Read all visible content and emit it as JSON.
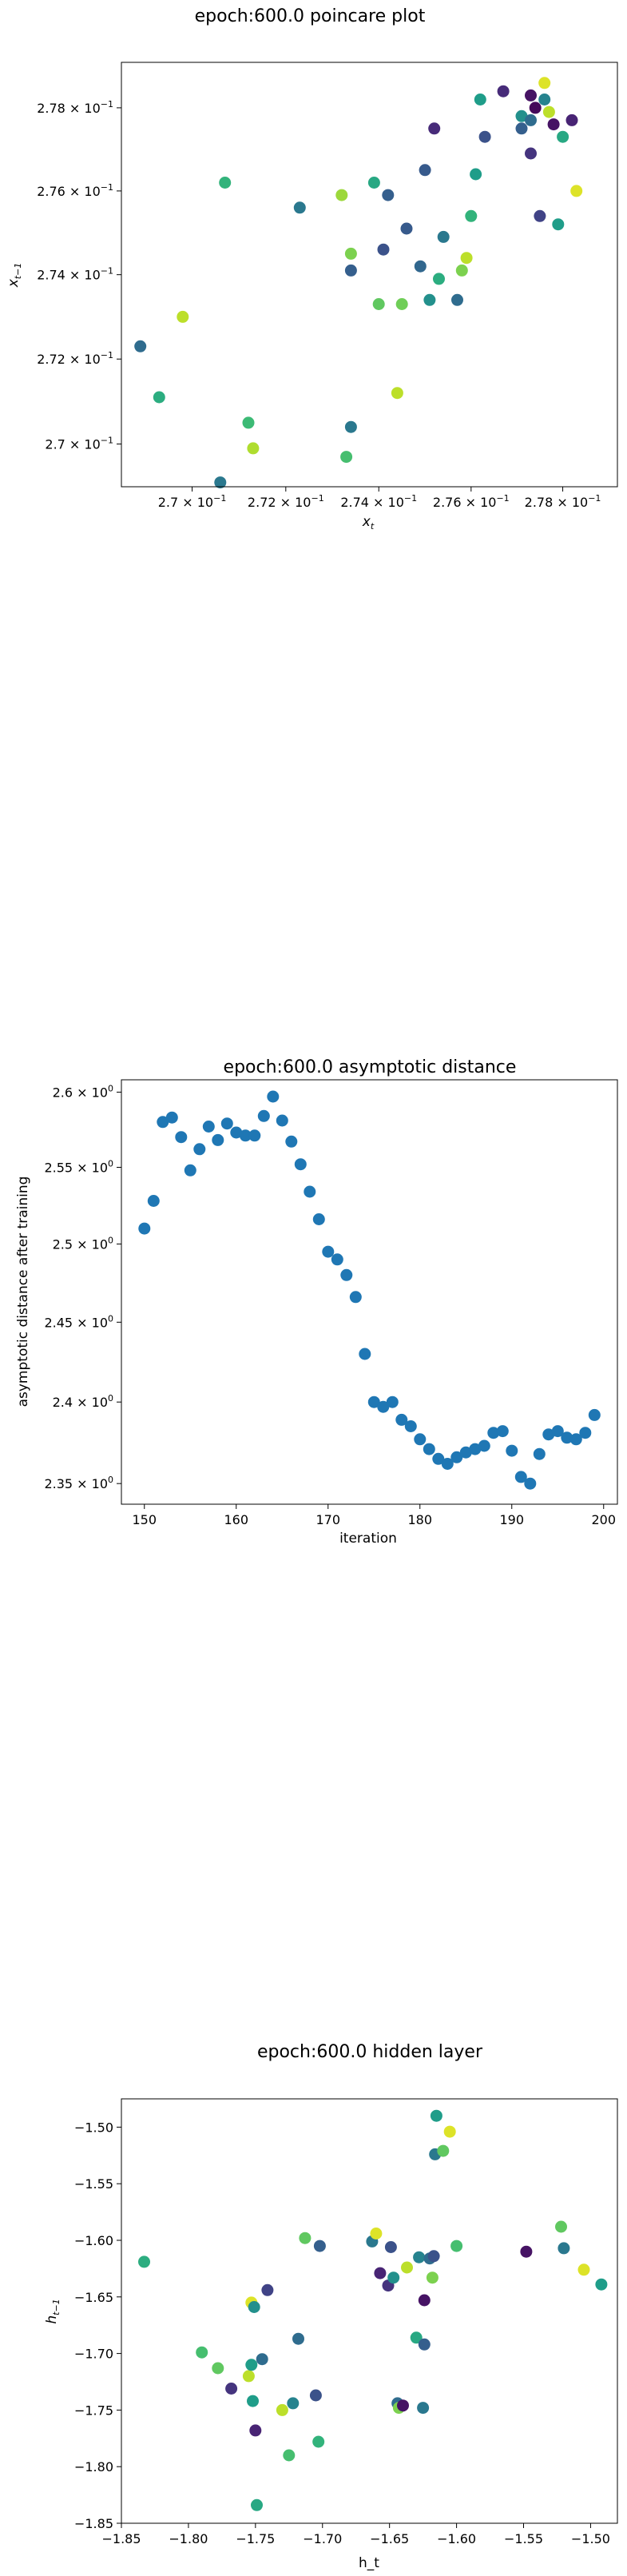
{
  "chart_data": [
    {
      "type": "scatter",
      "title": "epoch:600.0 poincare plot",
      "xlabel": "x_t",
      "ylabel": "x_{t-1}",
      "xscale": "log",
      "yscale": "log",
      "xlim": [
        0.2685,
        0.2792
      ],
      "ylim": [
        0.269,
        0.2791
      ],
      "xticks": [
        0.27,
        0.272,
        0.274,
        0.276,
        0.278
      ],
      "xtick_labels": [
        {
          "mant": "2.7 × 10",
          "exp": "−1"
        },
        {
          "mant": "2.72 × 10",
          "exp": "−1"
        },
        {
          "mant": "2.74 × 10",
          "exp": "−1"
        },
        {
          "mant": "2.76 × 10",
          "exp": "−1"
        },
        {
          "mant": "2.78 × 10",
          "exp": "−1"
        }
      ],
      "yticks": [
        0.27,
        0.272,
        0.274,
        0.276,
        0.278
      ],
      "ytick_labels": [
        {
          "mant": "2.7 × 10",
          "exp": "−1"
        },
        {
          "mant": "2.72 × 10",
          "exp": "−1"
        },
        {
          "mant": "2.74 × 10",
          "exp": "−1"
        },
        {
          "mant": "2.76 × 10",
          "exp": "−1"
        },
        {
          "mant": "2.78 × 10",
          "exp": "−1"
        }
      ],
      "grid": false,
      "colormap": "viridis",
      "points": [
        {
          "x": 0.2689,
          "y": 0.2723,
          "c": 0.35
        },
        {
          "x": 0.2693,
          "y": 0.2711,
          "c": 0.62
        },
        {
          "x": 0.2698,
          "y": 0.273,
          "c": 0.9
        },
        {
          "x": 0.2706,
          "y": 0.2691,
          "c": 0.4
        },
        {
          "x": 0.2707,
          "y": 0.2762,
          "c": 0.65
        },
        {
          "x": 0.2712,
          "y": 0.2705,
          "c": 0.68
        },
        {
          "x": 0.2713,
          "y": 0.2699,
          "c": 0.88
        },
        {
          "x": 0.2723,
          "y": 0.2756,
          "c": 0.4
        },
        {
          "x": 0.2732,
          "y": 0.2759,
          "c": 0.85
        },
        {
          "x": 0.2733,
          "y": 0.2697,
          "c": 0.7
        },
        {
          "x": 0.2734,
          "y": 0.2745,
          "c": 0.8
        },
        {
          "x": 0.2734,
          "y": 0.2704,
          "c": 0.4
        },
        {
          "x": 0.2734,
          "y": 0.2741,
          "c": 0.3
        },
        {
          "x": 0.2739,
          "y": 0.2762,
          "c": 0.6
        },
        {
          "x": 0.274,
          "y": 0.2733,
          "c": 0.75
        },
        {
          "x": 0.2741,
          "y": 0.2746,
          "c": 0.25
        },
        {
          "x": 0.2742,
          "y": 0.2759,
          "c": 0.3
        },
        {
          "x": 0.2744,
          "y": 0.2712,
          "c": 0.9
        },
        {
          "x": 0.2745,
          "y": 0.2733,
          "c": 0.78
        },
        {
          "x": 0.2746,
          "y": 0.2751,
          "c": 0.28
        },
        {
          "x": 0.2749,
          "y": 0.2742,
          "c": 0.33
        },
        {
          "x": 0.275,
          "y": 0.2765,
          "c": 0.28
        },
        {
          "x": 0.2751,
          "y": 0.2734,
          "c": 0.5
        },
        {
          "x": 0.2752,
          "y": 0.2775,
          "c": 0.12
        },
        {
          "x": 0.2753,
          "y": 0.2739,
          "c": 0.62
        },
        {
          "x": 0.2754,
          "y": 0.2749,
          "c": 0.4
        },
        {
          "x": 0.2757,
          "y": 0.2734,
          "c": 0.35
        },
        {
          "x": 0.2758,
          "y": 0.2741,
          "c": 0.8
        },
        {
          "x": 0.2759,
          "y": 0.2744,
          "c": 0.9
        },
        {
          "x": 0.276,
          "y": 0.2754,
          "c": 0.65
        },
        {
          "x": 0.2761,
          "y": 0.2764,
          "c": 0.55
        },
        {
          "x": 0.2762,
          "y": 0.2782,
          "c": 0.55
        },
        {
          "x": 0.2763,
          "y": 0.2773,
          "c": 0.25
        },
        {
          "x": 0.2767,
          "y": 0.2784,
          "c": 0.12
        },
        {
          "x": 0.2771,
          "y": 0.2778,
          "c": 0.5
        },
        {
          "x": 0.2771,
          "y": 0.2775,
          "c": 0.3
        },
        {
          "x": 0.2773,
          "y": 0.2777,
          "c": 0.35
        },
        {
          "x": 0.2773,
          "y": 0.2783,
          "c": 0.05
        },
        {
          "x": 0.2773,
          "y": 0.2769,
          "c": 0.15
        },
        {
          "x": 0.2774,
          "y": 0.278,
          "c": 0.02
        },
        {
          "x": 0.2775,
          "y": 0.2754,
          "c": 0.2
        },
        {
          "x": 0.2776,
          "y": 0.2786,
          "c": 0.95
        },
        {
          "x": 0.2776,
          "y": 0.2782,
          "c": 0.45
        },
        {
          "x": 0.2777,
          "y": 0.2779,
          "c": 0.9
        },
        {
          "x": 0.2778,
          "y": 0.2776,
          "c": 0.05
        },
        {
          "x": 0.2779,
          "y": 0.2752,
          "c": 0.55
        },
        {
          "x": 0.278,
          "y": 0.2773,
          "c": 0.6
        },
        {
          "x": 0.2782,
          "y": 0.2777,
          "c": 0.1
        },
        {
          "x": 0.2783,
          "y": 0.276,
          "c": 0.95
        }
      ]
    },
    {
      "type": "scatter",
      "title": "epoch:600.0 asymptotic distance",
      "xlabel": "iteration",
      "ylabel": "asymptotic distance after training",
      "yscale": "log",
      "xlim": [
        147.5,
        201.5
      ],
      "ylim": [
        2.3375,
        2.6083
      ],
      "xticks": [
        150,
        160,
        170,
        180,
        190,
        200
      ],
      "yticks": [
        2.35,
        2.4,
        2.45,
        2.5,
        2.55,
        2.6
      ],
      "ytick_labels": [
        {
          "mant": "2.35 × 10",
          "exp": "0"
        },
        {
          "mant": "2.4 × 10",
          "exp": "0"
        },
        {
          "mant": "2.45 × 10",
          "exp": "0"
        },
        {
          "mant": "2.5 × 10",
          "exp": "0"
        },
        {
          "mant": "2.55 × 10",
          "exp": "0"
        },
        {
          "mant": "2.6 × 10",
          "exp": "0"
        }
      ],
      "grid": false,
      "color": "#1f77b4",
      "x": [
        150,
        151,
        152,
        153,
        154,
        155,
        156,
        157,
        158,
        159,
        160,
        161,
        162,
        163,
        164,
        165,
        166,
        167,
        168,
        169,
        170,
        171,
        172,
        173,
        174,
        175,
        176,
        177,
        178,
        179,
        180,
        181,
        182,
        183,
        184,
        185,
        186,
        187,
        188,
        189,
        190,
        191,
        192,
        193,
        194,
        195,
        196,
        197,
        198,
        199
      ],
      "y": [
        2.51,
        2.528,
        2.58,
        2.583,
        2.57,
        2.548,
        2.562,
        2.577,
        2.568,
        2.579,
        2.573,
        2.571,
        2.571,
        2.584,
        2.597,
        2.581,
        2.567,
        2.552,
        2.534,
        2.516,
        2.495,
        2.49,
        2.48,
        2.466,
        2.43,
        2.4,
        2.397,
        2.4,
        2.389,
        2.385,
        2.377,
        2.371,
        2.365,
        2.362,
        2.366,
        2.369,
        2.371,
        2.373,
        2.381,
        2.382,
        2.37,
        2.354,
        2.35,
        2.368,
        2.38,
        2.382,
        2.378,
        2.377,
        2.381,
        2.392
      ]
    },
    {
      "type": "scatter",
      "title": "epoch:600.0 hidden layer",
      "xlabel": "h_t",
      "ylabel": "h_{t-1}",
      "xlim": [
        -1.85,
        -1.48
      ],
      "ylim": [
        -1.85,
        -1.475
      ],
      "xticks": [
        -1.85,
        -1.8,
        -1.75,
        -1.7,
        -1.65,
        -1.6,
        -1.55,
        -1.5
      ],
      "xtick_labels": [
        "−1.85",
        "−1.80",
        "−1.75",
        "−1.70",
        "−1.65",
        "−1.60",
        "−1.55",
        "−1.50"
      ],
      "yticks": [
        -1.85,
        -1.8,
        -1.75,
        -1.7,
        -1.65,
        -1.6,
        -1.55,
        -1.5
      ],
      "ytick_labels": [
        "−1.85",
        "−1.80",
        "−1.75",
        "−1.70",
        "−1.65",
        "−1.60",
        "−1.55",
        "−1.50"
      ],
      "grid": false,
      "colormap": "viridis",
      "points": [
        {
          "x": -1.833,
          "y": -1.619,
          "c": 0.62
        },
        {
          "x": -1.79,
          "y": -1.699,
          "c": 0.7
        },
        {
          "x": -1.778,
          "y": -1.713,
          "c": 0.75
        },
        {
          "x": -1.768,
          "y": -1.731,
          "c": 0.15
        },
        {
          "x": -1.755,
          "y": -1.72,
          "c": 0.9
        },
        {
          "x": -1.753,
          "y": -1.655,
          "c": 0.95
        },
        {
          "x": -1.753,
          "y": -1.71,
          "c": 0.55
        },
        {
          "x": -1.752,
          "y": -1.742,
          "c": 0.55
        },
        {
          "x": -1.751,
          "y": -1.659,
          "c": 0.5
        },
        {
          "x": -1.75,
          "y": -1.768,
          "c": 0.1
        },
        {
          "x": -1.749,
          "y": -1.834,
          "c": 0.6
        },
        {
          "x": -1.745,
          "y": -1.705,
          "c": 0.35
        },
        {
          "x": -1.741,
          "y": -1.644,
          "c": 0.2
        },
        {
          "x": -1.73,
          "y": -1.75,
          "c": 0.9
        },
        {
          "x": -1.725,
          "y": -1.79,
          "c": 0.7
        },
        {
          "x": -1.722,
          "y": -1.744,
          "c": 0.45
        },
        {
          "x": -1.718,
          "y": -1.687,
          "c": 0.35
        },
        {
          "x": -1.713,
          "y": -1.598,
          "c": 0.75
        },
        {
          "x": -1.705,
          "y": -1.737,
          "c": 0.25
        },
        {
          "x": -1.703,
          "y": -1.778,
          "c": 0.65
        },
        {
          "x": -1.702,
          "y": -1.605,
          "c": 0.3
        },
        {
          "x": -1.663,
          "y": -1.601,
          "c": 0.4
        },
        {
          "x": -1.66,
          "y": -1.594,
          "c": 0.95
        },
        {
          "x": -1.657,
          "y": -1.629,
          "c": 0.1
        },
        {
          "x": -1.651,
          "y": -1.64,
          "c": 0.15
        },
        {
          "x": -1.649,
          "y": -1.606,
          "c": 0.25
        },
        {
          "x": -1.647,
          "y": -1.633,
          "c": 0.5
        },
        {
          "x": -1.644,
          "y": -1.744,
          "c": 0.35
        },
        {
          "x": -1.643,
          "y": -1.748,
          "c": 0.8
        },
        {
          "x": -1.64,
          "y": -1.746,
          "c": 0.05
        },
        {
          "x": -1.637,
          "y": -1.624,
          "c": 0.9
        },
        {
          "x": -1.63,
          "y": -1.686,
          "c": 0.6
        },
        {
          "x": -1.628,
          "y": -1.615,
          "c": 0.45
        },
        {
          "x": -1.625,
          "y": -1.748,
          "c": 0.4
        },
        {
          "x": -1.624,
          "y": -1.692,
          "c": 0.3
        },
        {
          "x": -1.624,
          "y": -1.653,
          "c": 0.05
        },
        {
          "x": -1.62,
          "y": -1.616,
          "c": 0.35
        },
        {
          "x": -1.618,
          "y": -1.633,
          "c": 0.8
        },
        {
          "x": -1.617,
          "y": -1.614,
          "c": 0.25
        },
        {
          "x": -1.616,
          "y": -1.524,
          "c": 0.4
        },
        {
          "x": -1.615,
          "y": -1.49,
          "c": 0.55
        },
        {
          "x": -1.61,
          "y": -1.521,
          "c": 0.75
        },
        {
          "x": -1.605,
          "y": -1.504,
          "c": 0.95
        },
        {
          "x": -1.6,
          "y": -1.605,
          "c": 0.7
        },
        {
          "x": -1.548,
          "y": -1.61,
          "c": 0.05
        },
        {
          "x": -1.522,
          "y": -1.588,
          "c": 0.75
        },
        {
          "x": -1.52,
          "y": -1.607,
          "c": 0.4
        },
        {
          "x": -1.505,
          "y": -1.626,
          "c": 0.95
        },
        {
          "x": -1.492,
          "y": -1.639,
          "c": 0.55
        }
      ]
    }
  ]
}
